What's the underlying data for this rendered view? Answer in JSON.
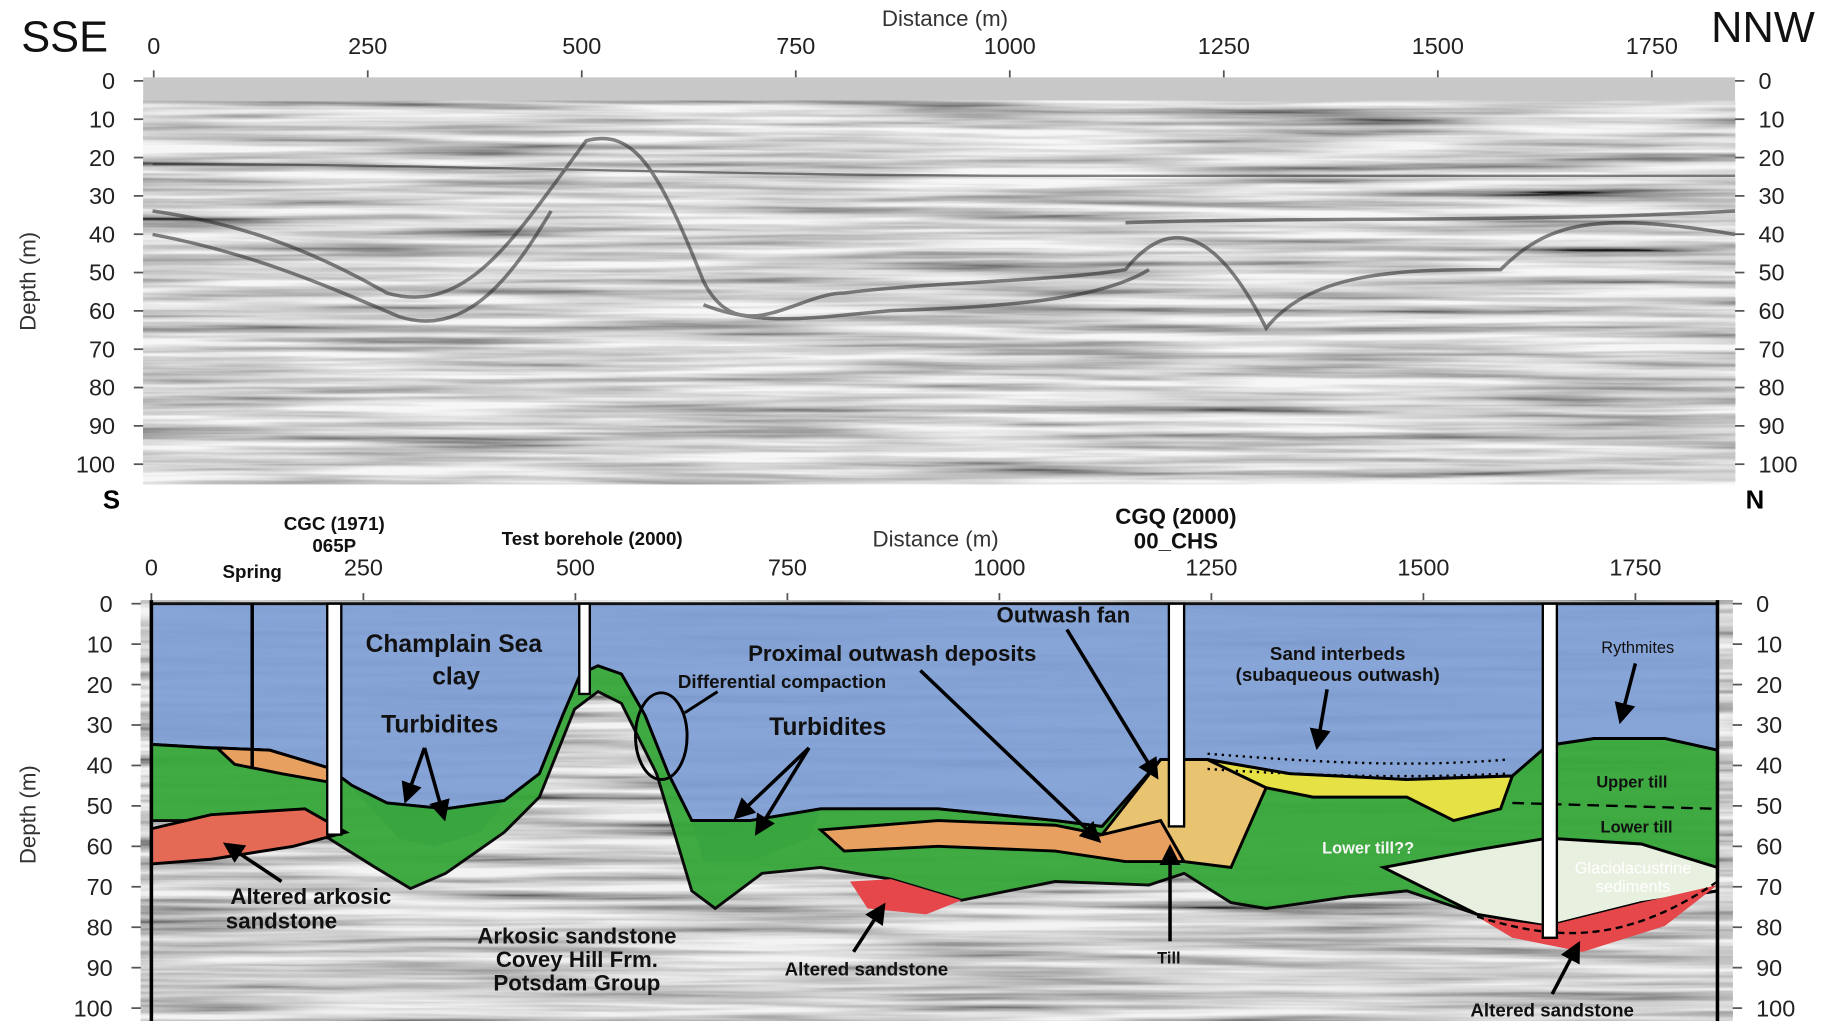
{
  "top_panel": {
    "left_direction": "SSE",
    "right_direction": "NNW",
    "x_axis_label": "Distance (m)",
    "y_axis_label": "Depth (m)",
    "xticks": [
      0,
      250,
      500,
      750,
      1000,
      1250,
      1500,
      1750
    ],
    "yticks": [
      0,
      10,
      20,
      30,
      40,
      50,
      60,
      70,
      80,
      90,
      100
    ]
  },
  "bottom_panel": {
    "left_end": "S",
    "right_end": "N",
    "x_axis_label": "Distance (m)",
    "y_axis_label": "Depth (m)",
    "xticks": [
      0,
      250,
      500,
      750,
      1000,
      1250,
      1500,
      1750
    ],
    "yticks": [
      0,
      10,
      20,
      30,
      40,
      50,
      60,
      70,
      80,
      90,
      100
    ],
    "boreholes": [
      [
        "CGC (1971)",
        "065P"
      ],
      [
        "Test borehole (2000)"
      ],
      [
        "CGQ (2000)",
        "00_CHS"
      ]
    ],
    "labels": [
      [
        "Spring"
      ],
      [
        "Champlain Sea",
        "clay"
      ],
      [
        "Turbidites"
      ],
      [
        "Turbidites"
      ],
      [
        "Differential compaction"
      ],
      [
        "Proximal outwash deposits"
      ],
      [
        "Outwash fan"
      ],
      [
        "Sand interbeds",
        "(subaqueous outwash)"
      ],
      [
        "Rythmites"
      ],
      [
        "Upper till"
      ],
      [
        "Lower till"
      ],
      [
        "Lower till??"
      ],
      [
        "Glaciolacustrine",
        "sediments"
      ],
      [
        "Altered arkosic",
        "sandstone"
      ],
      [
        "Arkosic sandstone",
        "Covey Hill Frm.",
        "Potsdam Group"
      ],
      [
        "Altered sandstone"
      ],
      [
        "Till"
      ],
      [
        "Altered sandstone"
      ]
    ]
  }
}
